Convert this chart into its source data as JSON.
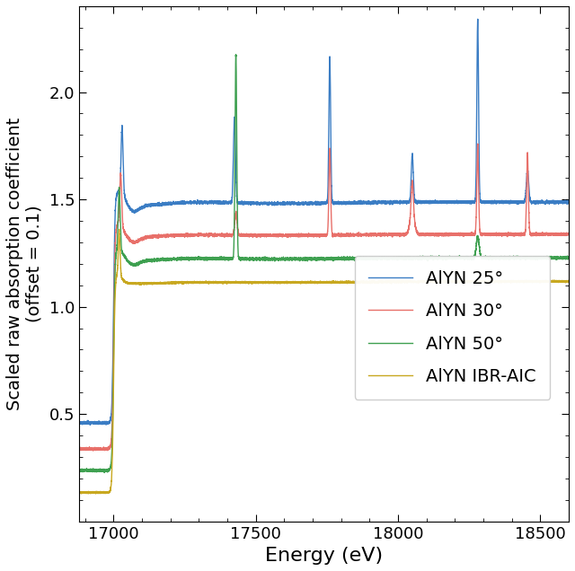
{
  "xlabel": "Energy (eV)",
  "ylabel": "Scaled raw absorption coefficient\n(offset = 0.1)",
  "xlim": [
    16880,
    18600
  ],
  "ylim": [
    0.0,
    2.4
  ],
  "yticks": [
    0.5,
    1.0,
    1.5,
    2.0
  ],
  "xticks": [
    17000,
    17500,
    18000,
    18500
  ],
  "colors": {
    "blue": "#3B7DC4",
    "pink": "#E8706A",
    "green": "#3EA050",
    "olive": "#C8A820"
  },
  "legend_labels": [
    "AlYN 25°",
    "AlYN 30°",
    "AlYN 50°",
    "AlYN IBR-AIC"
  ],
  "figsize": [
    6.4,
    6.36
  ],
  "dpi": 100,
  "edge_energy": 17000
}
